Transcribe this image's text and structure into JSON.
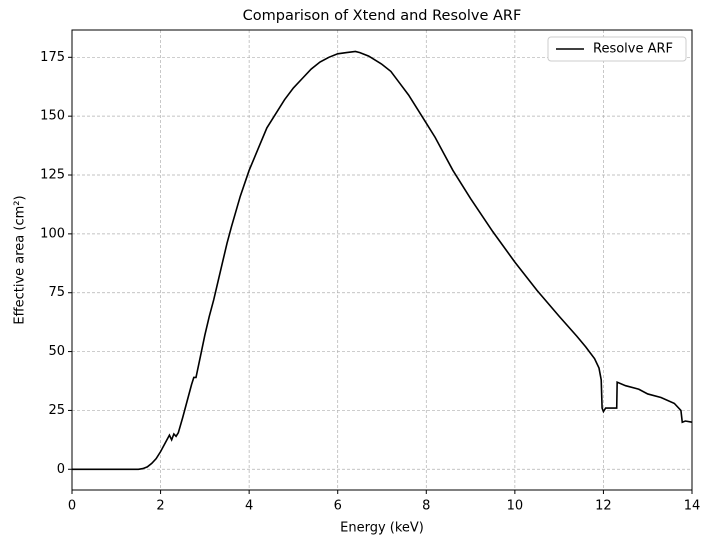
{
  "chart_data": {
    "type": "line",
    "title": "Comparison of Xtend and Resolve ARF",
    "xlabel": "Energy (keV)",
    "ylabel": "Effective area (cm²)",
    "x": [
      0,
      1.5,
      1.6,
      1.7,
      1.8,
      1.9,
      2.0,
      2.1,
      2.2,
      2.25,
      2.3,
      2.35,
      2.4,
      2.5,
      2.6,
      2.7,
      2.75,
      2.8,
      2.9,
      3.0,
      3.1,
      3.2,
      3.3,
      3.4,
      3.5,
      3.6,
      3.8,
      4.0,
      4.2,
      4.4,
      4.6,
      4.8,
      5.0,
      5.2,
      5.4,
      5.6,
      5.8,
      6.0,
      6.2,
      6.4,
      6.5,
      6.7,
      7.0,
      7.2,
      7.4,
      7.6,
      7.8,
      8.0,
      8.2,
      8.4,
      8.6,
      9.0,
      9.5,
      10.0,
      10.5,
      11.0,
      11.4,
      11.6,
      11.8,
      11.9,
      11.95,
      11.97,
      12.0,
      12.05,
      12.3,
      12.31,
      12.5,
      12.8,
      13.0,
      13.3,
      13.6,
      13.75,
      13.78,
      13.85,
      14.0
    ],
    "series": [
      {
        "name": "Resolve ARF",
        "color": "#000000",
        "values": [
          0,
          0,
          0.3,
          1,
          2.5,
          4.5,
          7.5,
          11,
          14.5,
          12.5,
          15,
          14,
          15.5,
          22,
          29,
          36,
          39,
          39,
          48,
          57,
          65,
          72,
          80,
          88,
          96,
          103,
          116,
          127,
          136,
          145,
          151,
          157,
          162,
          166,
          170,
          173,
          175,
          176.5,
          177,
          177.5,
          177,
          175.5,
          172,
          169,
          164,
          159,
          153,
          147,
          141,
          134,
          127,
          115,
          101,
          88,
          76,
          65,
          56.5,
          52,
          47,
          43,
          38,
          26,
          24.5,
          26,
          26,
          37,
          35.5,
          34,
          32,
          30.5,
          28,
          25,
          20,
          20.5,
          20
        ]
      }
    ],
    "xlim": [
      0,
      14
    ],
    "xticks": [
      0,
      2,
      4,
      6,
      8,
      10,
      12,
      14
    ],
    "ylim": [
      -8.8,
      186.6
    ],
    "yticks": [
      0,
      25,
      50,
      75,
      100,
      125,
      150,
      175
    ],
    "grid": true,
    "legend": "upper right"
  }
}
